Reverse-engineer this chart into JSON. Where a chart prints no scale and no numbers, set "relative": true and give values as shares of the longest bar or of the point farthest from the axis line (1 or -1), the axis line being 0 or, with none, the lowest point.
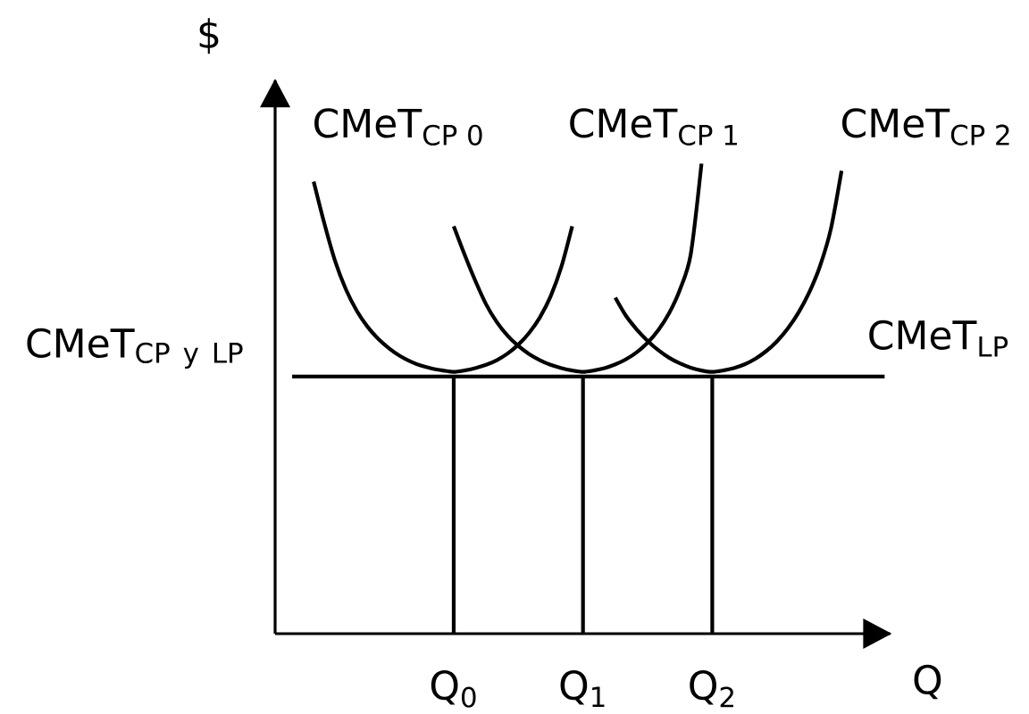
{
  "chart_data": {
    "type": "line",
    "relative": true,
    "xlabel": "Q",
    "ylabel": "$",
    "categories": [
      null,
      null,
      null,
      null,
      null,
      null,
      null,
      null,
      null,
      null,
      null,
      null,
      null,
      null,
      null,
      "Q$_{0}$",
      null,
      null,
      null,
      null,
      null,
      null,
      null,
      null,
      null,
      null,
      null,
      "Q$_{1}$",
      null,
      null,
      null,
      null,
      null,
      null,
      null,
      null,
      null,
      null,
      null,
      "Q$_{2}$",
      null,
      null,
      null,
      null,
      null,
      null,
      null,
      null,
      null,
      null,
      null,
      null,
      null,
      null,
      null,
      null
    ],
    "series": [
      {
        "name": "CMeT$_{CP 0}$",
        "color": "#000000",
        "values": [
          null,
          null,
          0.962,
          0.872,
          0.792,
          0.732,
          0.687,
          0.653,
          0.627,
          0.607,
          0.591,
          0.579,
          0.57,
          0.564,
          0.56,
          0.557,
          0.56,
          0.565,
          0.572,
          0.582,
          0.596,
          0.615,
          0.64,
          0.673,
          0.718,
          0.781,
          0.867,
          null,
          null,
          null,
          null,
          null,
          null,
          null,
          null,
          null,
          null,
          null,
          null,
          null,
          null,
          null,
          null,
          null,
          null,
          null,
          null,
          null,
          null,
          null,
          null,
          null,
          null,
          null,
          null,
          null
        ]
      },
      {
        "name": "CMeT$_{CP 1}$",
        "color": "#000000",
        "values": [
          null,
          null,
          null,
          null,
          null,
          null,
          null,
          null,
          null,
          null,
          null,
          null,
          null,
          null,
          null,
          0.867,
          0.807,
          0.751,
          0.701,
          0.663,
          0.634,
          0.612,
          0.595,
          0.582,
          0.572,
          0.565,
          0.56,
          0.557,
          0.56,
          0.565,
          0.573,
          0.584,
          0.599,
          0.619,
          0.646,
          0.682,
          0.732,
          0.807,
          1.0,
          null,
          null,
          null,
          null,
          null,
          null,
          null,
          null,
          null,
          null,
          null,
          null,
          null,
          null,
          null,
          null,
          null
        ]
      },
      {
        "name": "CMeT$_{CP 2}$",
        "color": "#000000",
        "values": [
          null,
          null,
          null,
          null,
          null,
          null,
          null,
          null,
          null,
          null,
          null,
          null,
          null,
          null,
          null,
          null,
          null,
          null,
          null,
          null,
          null,
          null,
          null,
          null,
          null,
          null,
          null,
          null,
          null,
          null,
          0.715,
          0.676,
          0.647,
          0.623,
          0.603,
          0.587,
          0.575,
          0.566,
          0.56,
          0.557,
          0.56,
          0.565,
          0.573,
          0.585,
          0.601,
          0.622,
          0.649,
          0.683,
          0.726,
          0.782,
          0.86,
          0.985,
          null,
          null,
          null,
          null
        ]
      },
      {
        "name": "CMeT$_{LP}$",
        "color": "#000000",
        "values": [
          0.547,
          0.547,
          0.547,
          0.547,
          0.547,
          0.547,
          0.547,
          0.547,
          0.547,
          0.547,
          0.547,
          0.547,
          0.547,
          0.547,
          0.547,
          0.547,
          0.547,
          0.547,
          0.547,
          0.547,
          0.547,
          0.547,
          0.547,
          0.547,
          0.547,
          0.547,
          0.547,
          0.547,
          0.547,
          0.547,
          0.547,
          0.547,
          0.547,
          0.547,
          0.547,
          0.547,
          0.547,
          0.547,
          0.547,
          0.547,
          0.547,
          0.547,
          0.547,
          0.547,
          0.547,
          0.547,
          0.547,
          0.547,
          0.547,
          0.547,
          0.547,
          0.547,
          0.547,
          0.547,
          0.547,
          0.547
        ]
      },
      {
        "type": "bar",
        "color": "#000000",
        "values": [
          null,
          null,
          null,
          null,
          null,
          null,
          null,
          null,
          null,
          null,
          null,
          null,
          null,
          null,
          null,
          0.547,
          null,
          null,
          null,
          null,
          null,
          null,
          null,
          null,
          null,
          null,
          null,
          0.547,
          null,
          null,
          null,
          null,
          null,
          null,
          null,
          null,
          null,
          null,
          null,
          0.547,
          null,
          null,
          null,
          null,
          null,
          null,
          null,
          null,
          null,
          null,
          null,
          null,
          null,
          null,
          null,
          null
        ]
      }
    ],
    "annotations": [
      "\\mathrm{CMeT}_{\\mathrm{CP\\ y\\ LP}}"
    ]
  }
}
